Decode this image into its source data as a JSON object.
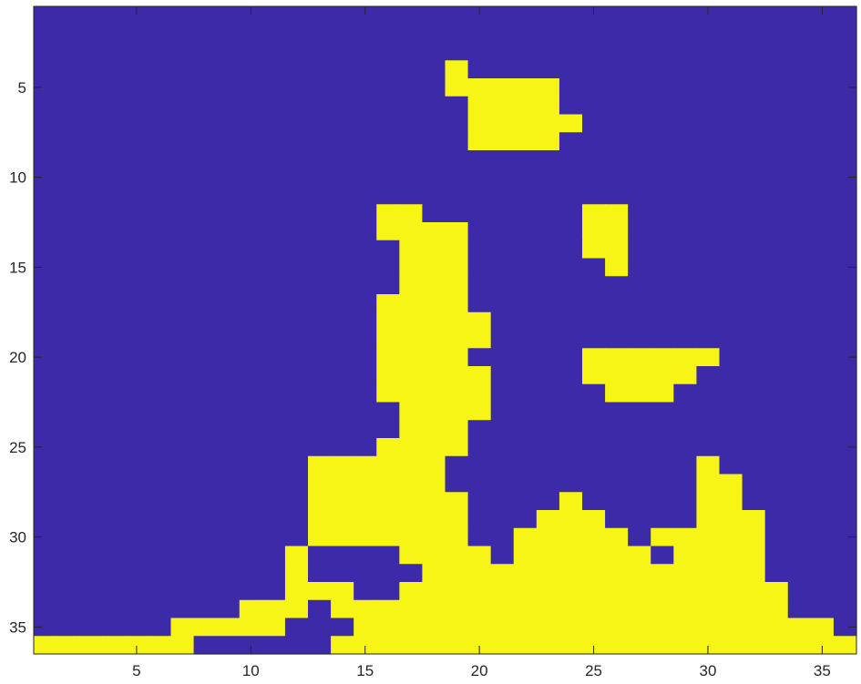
{
  "chart_data": {
    "type": "heatmap",
    "title": "",
    "xlabel": "",
    "ylabel": "",
    "xlim": [
      0.5,
      36.5
    ],
    "ylim": [
      0.5,
      36.5
    ],
    "y_direction": "reverse",
    "x_ticks": [
      5,
      10,
      15,
      20,
      25,
      30,
      35
    ],
    "y_ticks": [
      5,
      10,
      15,
      20,
      25,
      30,
      35
    ],
    "grid": false,
    "legend": "none",
    "colors": {
      "1": "#3d2aa8",
      "0": "#f7f516"
    },
    "rows": [
      "111111111111111111111111111111111111",
      "111111111111111111111111111111111111",
      "111111111111111111111111111111111111",
      "111111111111111111011111111111111111",
      "111111111111111111000001111111111111",
      "111111111111111111100001111111111111",
      "111111111111111111100000111111111111",
      "111111111111111111100001111111111111",
      "111111111111111111111111111111111111",
      "111111111111111111111111111111111111",
      "111111111111111111111111111111111111",
      "111111111111111001111111001111111111",
      "111111111111111000011111001111111111",
      "111111111111111100011111001111111111",
      "111111111111111100011111101111111111",
      "111111111111111100011111111111111111",
      "111111111111111000011111111111111111",
      "111111111111111000001111111111111111",
      "111111111111111000001111111111111111",
      "111111111111111000011111000000111111",
      "111111111111111000001111000001111111",
      "111111111111111000001111100011111111",
      "111111111111111100001111111111111111",
      "111111111111111100011111111111111111",
      "111111111111111000011111111111111111",
      "111111111111000000111111111110111111",
      "111111111111000000111111111110011111",
      "111111111111000000011110111110011111",
      "111111111111000000011100011110001111",
      "111111111111000000011000001000001111",
      "111111111110111100001000000100001111",
      "111111111110111110000000000000001111",
      "111111111110001100000000000000000111",
      "111111111000100000000000000000000111",
      "111111000001110000000000000000000001",
      "000000011111100000000000000000000000"
    ]
  }
}
